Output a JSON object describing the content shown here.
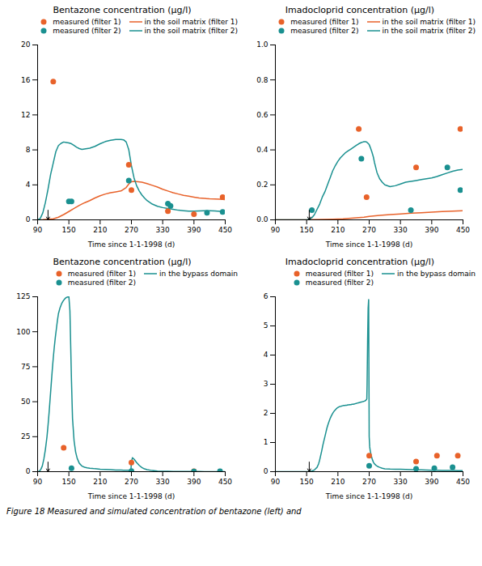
{
  "chart_data": [
    {
      "type": "line",
      "title": "Bentazone concentration (μg/l)",
      "xlabel": "Time since 1-1-1998 (d)",
      "xlim": [
        90,
        450
      ],
      "ylim": [
        0,
        20
      ],
      "xticks": [
        90,
        150,
        210,
        270,
        330,
        390,
        450
      ],
      "yticks": [
        0,
        4,
        8,
        12,
        16,
        20
      ],
      "legend": "upper right",
      "annotations": [
        {
          "type": "arrow",
          "x": 110,
          "y": 0,
          "y_from": 1.1
        }
      ],
      "series": [
        {
          "name": "measured (filter 1)",
          "type": "scatter",
          "marker": "circle",
          "color": "#E8622A",
          "x": [
            120,
            265,
            270,
            340,
            390,
            445
          ],
          "values": [
            15.8,
            6.3,
            3.4,
            1.0,
            0.65,
            2.6
          ]
        },
        {
          "name": "measured (filter 2)",
          "type": "scatter",
          "marker": "circle",
          "color": "#1A9090",
          "x": [
            150,
            155,
            265,
            340,
            345,
            415,
            445
          ],
          "values": [
            2.1,
            2.1,
            4.5,
            1.85,
            1.6,
            0.8,
            0.9
          ]
        },
        {
          "name": "in the soil matrix (filter 1)",
          "type": "line",
          "color": "#E8622A",
          "x": [
            90,
            100,
            110,
            120,
            130,
            140,
            150,
            160,
            170,
            180,
            190,
            200,
            210,
            220,
            230,
            240,
            250,
            260,
            265,
            270,
            275,
            280,
            290,
            300,
            310,
            320,
            330,
            340,
            350,
            360,
            370,
            380,
            390,
            400,
            410,
            420,
            430,
            440,
            450
          ],
          "values": [
            0.0,
            0.02,
            0.06,
            0.12,
            0.3,
            0.6,
            0.95,
            1.3,
            1.65,
            1.95,
            2.2,
            2.5,
            2.75,
            2.95,
            3.1,
            3.2,
            3.3,
            3.7,
            4.1,
            4.35,
            4.4,
            4.38,
            4.3,
            4.15,
            3.95,
            3.75,
            3.5,
            3.3,
            3.1,
            2.95,
            2.8,
            2.7,
            2.6,
            2.5,
            2.45,
            2.4,
            2.38,
            2.35,
            2.32
          ]
        },
        {
          "name": "in the soil matrix (filter 2)",
          "type": "line",
          "color": "#1A9090",
          "x": [
            90,
            95,
            100,
            105,
            110,
            115,
            120,
            125,
            130,
            135,
            140,
            145,
            150,
            155,
            160,
            165,
            170,
            175,
            180,
            190,
            200,
            210,
            220,
            230,
            240,
            250,
            255,
            260,
            265,
            270,
            275,
            280,
            285,
            290,
            295,
            300,
            310,
            320,
            330,
            340,
            350,
            360,
            370,
            380,
            390,
            400,
            410,
            420,
            430,
            440,
            450
          ],
          "values": [
            0.0,
            0.15,
            0.8,
            2.0,
            3.5,
            5.2,
            6.5,
            7.8,
            8.5,
            8.75,
            8.9,
            8.85,
            8.8,
            8.7,
            8.5,
            8.3,
            8.15,
            8.05,
            8.1,
            8.2,
            8.4,
            8.7,
            8.95,
            9.1,
            9.2,
            9.2,
            9.15,
            8.9,
            8.0,
            6.2,
            4.8,
            3.9,
            3.3,
            2.85,
            2.5,
            2.2,
            1.8,
            1.55,
            1.4,
            1.3,
            1.2,
            1.1,
            1.05,
            1.0,
            1.0,
            1.02,
            1.05,
            1.05,
            1.02,
            0.98,
            0.92
          ]
        }
      ]
    },
    {
      "type": "line",
      "title": "Imadocloprid concentration (μg/l)",
      "xlabel": "Time since 1-1-1998 (d)",
      "xlim": [
        90,
        450
      ],
      "ylim": [
        0,
        1.0
      ],
      "xticks": [
        90,
        150,
        210,
        270,
        330,
        390,
        450
      ],
      "yticks": [
        {
          "value": 0,
          "label": "0.0"
        },
        0.2,
        0.4,
        0.6,
        0.8,
        {
          "value": 1.0,
          "label": "1.0"
        }
      ],
      "legend": "upper right",
      "annotations": [
        {
          "type": "arrow",
          "x": 155,
          "y": 0,
          "y_from": 0.055
        }
      ],
      "series": [
        {
          "name": "measured (filter 1)",
          "type": "scatter",
          "marker": "circle",
          "color": "#E8622A",
          "x": [
            250,
            265,
            360,
            445
          ],
          "values": [
            0.52,
            0.13,
            0.3,
            0.52
          ]
        },
        {
          "name": "measured (filter 2)",
          "type": "scatter",
          "marker": "circle",
          "color": "#1A9090",
          "x": [
            160,
            255,
            350,
            420,
            445
          ],
          "values": [
            0.055,
            0.35,
            0.055,
            0.3,
            0.17
          ]
        },
        {
          "name": "in the soil matrix (filter 1)",
          "type": "line",
          "color": "#E8622A",
          "x": [
            90,
            150,
            160,
            180,
            200,
            220,
            240,
            260,
            270,
            290,
            310,
            330,
            350,
            370,
            390,
            410,
            430,
            450
          ],
          "values": [
            0.0,
            0.0,
            0.001,
            0.002,
            0.004,
            0.006,
            0.01,
            0.015,
            0.02,
            0.026,
            0.03,
            0.034,
            0.038,
            0.041,
            0.044,
            0.047,
            0.05,
            0.052
          ]
        },
        {
          "name": "in the soil matrix (filter 2)",
          "type": "line",
          "color": "#1A9090",
          "x": [
            90,
            150,
            155,
            160,
            165,
            170,
            175,
            180,
            185,
            190,
            195,
            200,
            205,
            210,
            215,
            220,
            225,
            230,
            235,
            240,
            245,
            250,
            255,
            258,
            260,
            263,
            265,
            267,
            270,
            272,
            275,
            278,
            280,
            285,
            290,
            295,
            300,
            310,
            320,
            330,
            340,
            350,
            360,
            370,
            380,
            390,
            400,
            410,
            420,
            430,
            440,
            450
          ],
          "values": [
            0.0,
            0.0,
            0.003,
            0.012,
            0.03,
            0.06,
            0.09,
            0.13,
            0.16,
            0.2,
            0.24,
            0.28,
            0.31,
            0.335,
            0.355,
            0.37,
            0.385,
            0.395,
            0.405,
            0.415,
            0.425,
            0.435,
            0.442,
            0.445,
            0.447,
            0.447,
            0.445,
            0.44,
            0.43,
            0.415,
            0.39,
            0.36,
            0.33,
            0.27,
            0.235,
            0.215,
            0.2,
            0.19,
            0.195,
            0.205,
            0.215,
            0.22,
            0.225,
            0.23,
            0.235,
            0.24,
            0.248,
            0.258,
            0.268,
            0.278,
            0.285,
            0.288
          ]
        }
      ]
    },
    {
      "type": "line",
      "title": "Bentazone concentration (μg/l)",
      "xlabel": "Time since 1-1-1998 (d)",
      "xlim": [
        90,
        450
      ],
      "ylim": [
        0,
        125
      ],
      "xticks": [
        90,
        150,
        210,
        270,
        330,
        390,
        450
      ],
      "yticks": [
        0,
        25,
        50,
        75,
        100,
        125
      ],
      "legend": "upper right",
      "annotations": [
        {
          "type": "arrow",
          "x": 110,
          "y": 0,
          "y_from": 6.875
        }
      ],
      "series": [
        {
          "name": "measured (filter 1)",
          "type": "scatter",
          "marker": "circle",
          "color": "#E8622A",
          "x": [
            140,
            270,
            390
          ],
          "values": [
            17.0,
            6.5,
            0.3
          ]
        },
        {
          "name": "measured (filter 2)",
          "type": "scatter",
          "marker": "circle",
          "color": "#1A9090",
          "x": [
            155,
            270,
            390,
            440
          ],
          "values": [
            2.5,
            0.4,
            0.2,
            0.25
          ]
        },
        {
          "name": "in the bypass domain",
          "type": "line",
          "color": "#1A9090",
          "x": [
            90,
            93,
            96,
            99,
            102,
            105,
            108,
            110,
            112,
            114,
            116,
            118,
            120,
            122,
            124,
            126,
            128,
            130,
            133,
            136,
            139,
            142,
            145,
            148,
            150,
            152,
            155,
            157,
            160,
            163,
            166,
            170,
            175,
            180,
            185,
            190,
            195,
            200,
            210,
            220,
            230,
            240,
            250,
            255,
            260,
            263,
            265,
            267,
            268,
            269,
            270,
            272,
            275,
            280,
            285,
            290,
            295,
            300,
            310,
            320,
            330,
            340,
            350,
            360,
            370,
            380,
            390,
            400,
            410,
            420,
            430,
            440,
            450
          ],
          "values": [
            0.0,
            0.3,
            1.5,
            4.0,
            9.0,
            16.0,
            25.0,
            33.0,
            42.0,
            52.0,
            62.0,
            72.0,
            81.0,
            89.0,
            96.0,
            102.0,
            108.0,
            113.0,
            117.0,
            120.0,
            122.0,
            123.5,
            124.5,
            124.9,
            125.0,
            115.0,
            65.0,
            38.0,
            22.0,
            14.0,
            9.5,
            6.0,
            4.0,
            3.2,
            2.8,
            2.5,
            2.3,
            2.1,
            1.8,
            1.6,
            1.4,
            1.2,
            1.1,
            1.05,
            1.0,
            0.98,
            0.95,
            0.92,
            0.9,
            0.88,
            7.0,
            10.0,
            9.0,
            6.5,
            4.5,
            3.0,
            2.0,
            1.4,
            0.8,
            0.5,
            0.35,
            0.25,
            0.18,
            0.14,
            0.12,
            0.1,
            0.09,
            0.08,
            0.07,
            0.07,
            0.06,
            0.06,
            0.05
          ]
        }
      ]
    },
    {
      "type": "line",
      "title": "Imadocloprid concentration (μg/l)",
      "xlabel": "Time since 1-1-1998 (d)",
      "xlim": [
        90,
        450
      ],
      "ylim": [
        0,
        6
      ],
      "xticks": [
        90,
        150,
        210,
        270,
        330,
        390,
        450
      ],
      "yticks": [
        0,
        1,
        2,
        3,
        4,
        5,
        6
      ],
      "legend": "upper right",
      "annotations": [
        {
          "type": "arrow",
          "x": 155,
          "y": 0,
          "y_from": 0.33
        }
      ],
      "series": [
        {
          "name": "measured (filter 1)",
          "type": "scatter",
          "marker": "circle",
          "color": "#E8622A",
          "x": [
            270,
            360,
            400,
            440
          ],
          "values": [
            0.55,
            0.35,
            0.55,
            0.55
          ]
        },
        {
          "name": "measured (filter 2)",
          "type": "scatter",
          "marker": "circle",
          "color": "#1A9090",
          "x": [
            270,
            360,
            395,
            430
          ],
          "values": [
            0.2,
            0.1,
            0.12,
            0.15
          ]
        },
        {
          "name": "in the bypass domain",
          "type": "line",
          "color": "#1A9090",
          "x": [
            90,
            150,
            155,
            160,
            165,
            170,
            173,
            175,
            177,
            179,
            181,
            183,
            185,
            187,
            189,
            191,
            193,
            195,
            197,
            199,
            201,
            203,
            205,
            207,
            209,
            211,
            213,
            215,
            217,
            219,
            221,
            223,
            225,
            227,
            229,
            231,
            233,
            235,
            237,
            239,
            241,
            243,
            245,
            247,
            249,
            251,
            253,
            255,
            257,
            259,
            261,
            262,
            263,
            264,
            265,
            265.5,
            266,
            267,
            268,
            269,
            270,
            271,
            272,
            274,
            276,
            278,
            280,
            283,
            286,
            290,
            295,
            300,
            310,
            320,
            330,
            340,
            350,
            360,
            370,
            380,
            390,
            400,
            410,
            420,
            430,
            440,
            450
          ],
          "values": [
            0.0,
            0.0,
            0.005,
            0.02,
            0.06,
            0.15,
            0.27,
            0.4,
            0.56,
            0.72,
            0.9,
            1.05,
            1.2,
            1.35,
            1.5,
            1.62,
            1.72,
            1.82,
            1.9,
            1.97,
            2.03,
            2.08,
            2.12,
            2.16,
            2.19,
            2.21,
            2.23,
            2.24,
            2.25,
            2.26,
            2.27,
            2.27,
            2.28,
            2.28,
            2.29,
            2.29,
            2.3,
            2.3,
            2.31,
            2.31,
            2.32,
            2.33,
            2.34,
            2.35,
            2.36,
            2.37,
            2.38,
            2.39,
            2.4,
            2.41,
            2.42,
            2.43,
            2.44,
            2.46,
            2.48,
            2.5,
            3.0,
            4.5,
            5.6,
            5.9,
            1.2,
            0.85,
            0.72,
            0.55,
            0.42,
            0.33,
            0.27,
            0.22,
            0.18,
            0.15,
            0.12,
            0.1,
            0.09,
            0.085,
            0.08,
            0.075,
            0.07,
            0.065,
            0.06,
            0.055,
            0.05,
            0.048,
            0.045,
            0.043,
            0.04,
            0.038,
            0.035
          ]
        }
      ]
    }
  ],
  "caption": "Figure 18 Measured and simulated concentration of bentazone (left) and"
}
